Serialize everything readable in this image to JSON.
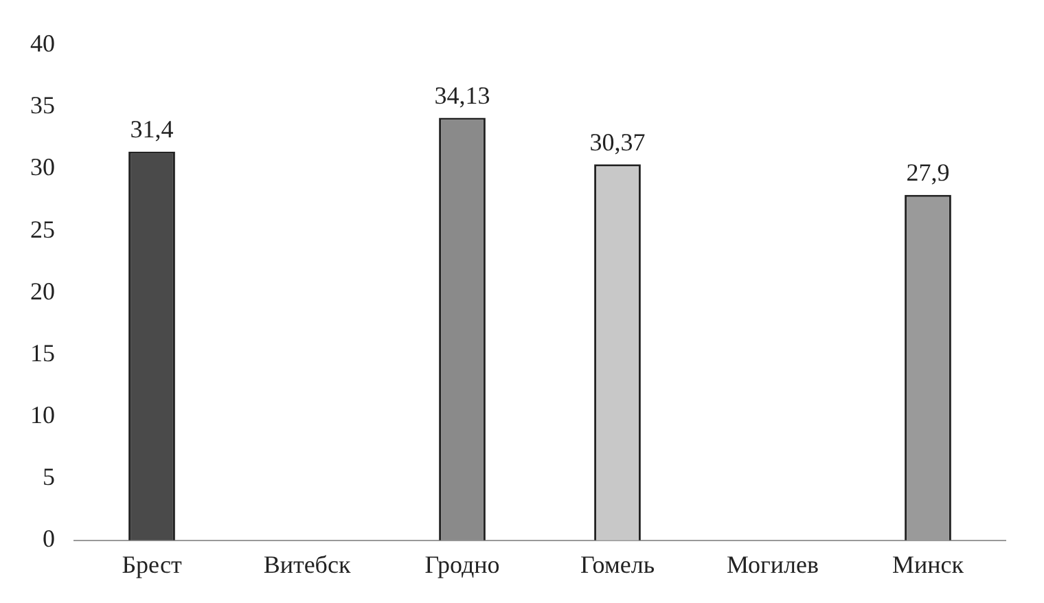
{
  "chart_data": {
    "type": "bar",
    "categories": [
      "Брест",
      "Витебск",
      "Гродно",
      "Гомель",
      "Могилев",
      "Минск"
    ],
    "values": [
      31.4,
      null,
      34.13,
      30.37,
      null,
      27.9
    ],
    "value_labels": [
      "31,4",
      null,
      "34,13",
      "30,37",
      null,
      "27,9"
    ],
    "colors": [
      "#4a4a4a",
      "#ffffff",
      "#8a8a8a",
      "#c8c8c8",
      "#ffffff",
      "#9a9a9a"
    ],
    "ylim": [
      0,
      40
    ],
    "yticks": [
      0,
      5,
      10,
      15,
      20,
      25,
      30,
      35,
      40
    ],
    "grid": false,
    "legend": false
  }
}
